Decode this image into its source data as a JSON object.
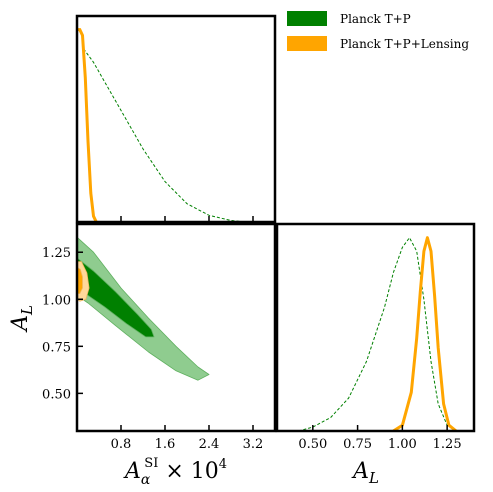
{
  "chart_data": {
    "type": "corner-plot",
    "legend": {
      "placement": "top-right",
      "entries": [
        {
          "label": "Planck T+P",
          "color": "#008000"
        },
        {
          "label": "Planck T+P+Lensing",
          "color": "#FFA500"
        }
      ]
    },
    "parameters": [
      {
        "name": "A_alpha^SI x 10^4",
        "label_main": "A",
        "label_sub": "α",
        "label_sup": "SI",
        "label_tail": " × 10",
        "label_tail_sup": "4"
      },
      {
        "name": "A_L",
        "label_main": "A",
        "label_sub": "L"
      }
    ],
    "axes": {
      "alpha": {
        "range": [
          0,
          3.6
        ],
        "ticks": [
          0.8,
          1.6,
          2.4,
          3.2
        ],
        "tick_labels": [
          "0.8",
          "1.6",
          "2.4",
          "3.2"
        ]
      },
      "AL_vertical": {
        "range": [
          0.3,
          1.4
        ],
        "ticks": [
          0.5,
          0.75,
          1.0,
          1.25
        ],
        "tick_labels": [
          "0.50",
          "0.75",
          "1.00",
          "1.25"
        ]
      },
      "AL_horizontal": {
        "range": [
          0.3,
          1.4
        ],
        "ticks": [
          0.5,
          0.75,
          1.0,
          1.25
        ],
        "tick_labels": [
          "0.50",
          "0.75",
          "1.00",
          "1.25"
        ]
      }
    },
    "marginal_alpha": {
      "series": [
        {
          "name": "Planck T+P",
          "style": "dashed",
          "x": [
            0.12,
            0.3,
            0.5,
            0.8,
            1.2,
            1.6,
            2.0,
            2.4,
            2.8,
            3.0,
            3.2
          ],
          "y": [
            0.9,
            0.83,
            0.73,
            0.58,
            0.38,
            0.21,
            0.095,
            0.035,
            0.008,
            0.002,
            0.0
          ]
        },
        {
          "name": "Planck T+P+Lensing",
          "style": "solid",
          "x": [
            0.0,
            0.05,
            0.1,
            0.15,
            0.2,
            0.25,
            0.3,
            0.35
          ],
          "y": [
            1.0,
            1.0,
            0.97,
            0.75,
            0.42,
            0.15,
            0.03,
            0.0
          ]
        }
      ]
    },
    "marginal_AL": {
      "series": [
        {
          "name": "Planck T+P",
          "style": "dashed",
          "x": [
            0.42,
            0.5,
            0.6,
            0.7,
            0.8,
            0.9,
            0.95,
            1.0,
            1.04,
            1.08,
            1.12,
            1.16,
            1.2,
            1.25,
            1.3
          ],
          "y": [
            0.0,
            0.02,
            0.07,
            0.17,
            0.36,
            0.64,
            0.82,
            0.95,
            1.0,
            0.93,
            0.68,
            0.36,
            0.14,
            0.03,
            0.0
          ]
        },
        {
          "name": "Planck T+P+Lensing",
          "style": "solid",
          "x": [
            0.95,
            1.0,
            1.05,
            1.08,
            1.1,
            1.12,
            1.14,
            1.16,
            1.18,
            1.2,
            1.23,
            1.26,
            1.3
          ],
          "y": [
            0.0,
            0.03,
            0.2,
            0.48,
            0.72,
            0.93,
            1.0,
            0.93,
            0.7,
            0.43,
            0.14,
            0.03,
            0.0
          ]
        }
      ]
    },
    "joint_contours": {
      "series": [
        {
          "name": "Planck T+P",
          "level": "95%",
          "color": "#8FCC8F",
          "points": [
            [
              0.0,
              1.33
            ],
            [
              0.3,
              1.25
            ],
            [
              0.8,
              1.06
            ],
            [
              1.3,
              0.9
            ],
            [
              1.8,
              0.75
            ],
            [
              2.2,
              0.64
            ],
            [
              2.4,
              0.6
            ],
            [
              2.2,
              0.57
            ],
            [
              1.8,
              0.62
            ],
            [
              1.3,
              0.72
            ],
            [
              0.7,
              0.86
            ],
            [
              0.2,
              0.98
            ],
            [
              0.0,
              1.02
            ]
          ]
        },
        {
          "name": "Planck T+P",
          "level": "68%",
          "color": "#008000",
          "points": [
            [
              0.0,
              1.22
            ],
            [
              0.3,
              1.15
            ],
            [
              0.7,
              1.04
            ],
            [
              1.1,
              0.92
            ],
            [
              1.35,
              0.84
            ],
            [
              1.4,
              0.8
            ],
            [
              1.25,
              0.8
            ],
            [
              0.9,
              0.87
            ],
            [
              0.5,
              0.96
            ],
            [
              0.15,
              1.03
            ],
            [
              0.0,
              1.06
            ]
          ]
        },
        {
          "name": "Planck T+P+Lensing",
          "level": "95%",
          "color": "#FFD89A",
          "points": [
            [
              0.0,
              1.2
            ],
            [
              0.08,
              1.2
            ],
            [
              0.18,
              1.14
            ],
            [
              0.22,
              1.06
            ],
            [
              0.16,
              1.0
            ],
            [
              0.05,
              0.99
            ],
            [
              0.0,
              1.0
            ]
          ]
        },
        {
          "name": "Planck T+P+Lensing",
          "level": "68%",
          "color": "#FFA500",
          "points": [
            [
              0.0,
              1.17
            ],
            [
              0.06,
              1.16
            ],
            [
              0.1,
              1.12
            ],
            [
              0.1,
              1.06
            ],
            [
              0.05,
              1.03
            ],
            [
              0.0,
              1.03
            ]
          ]
        }
      ]
    }
  }
}
